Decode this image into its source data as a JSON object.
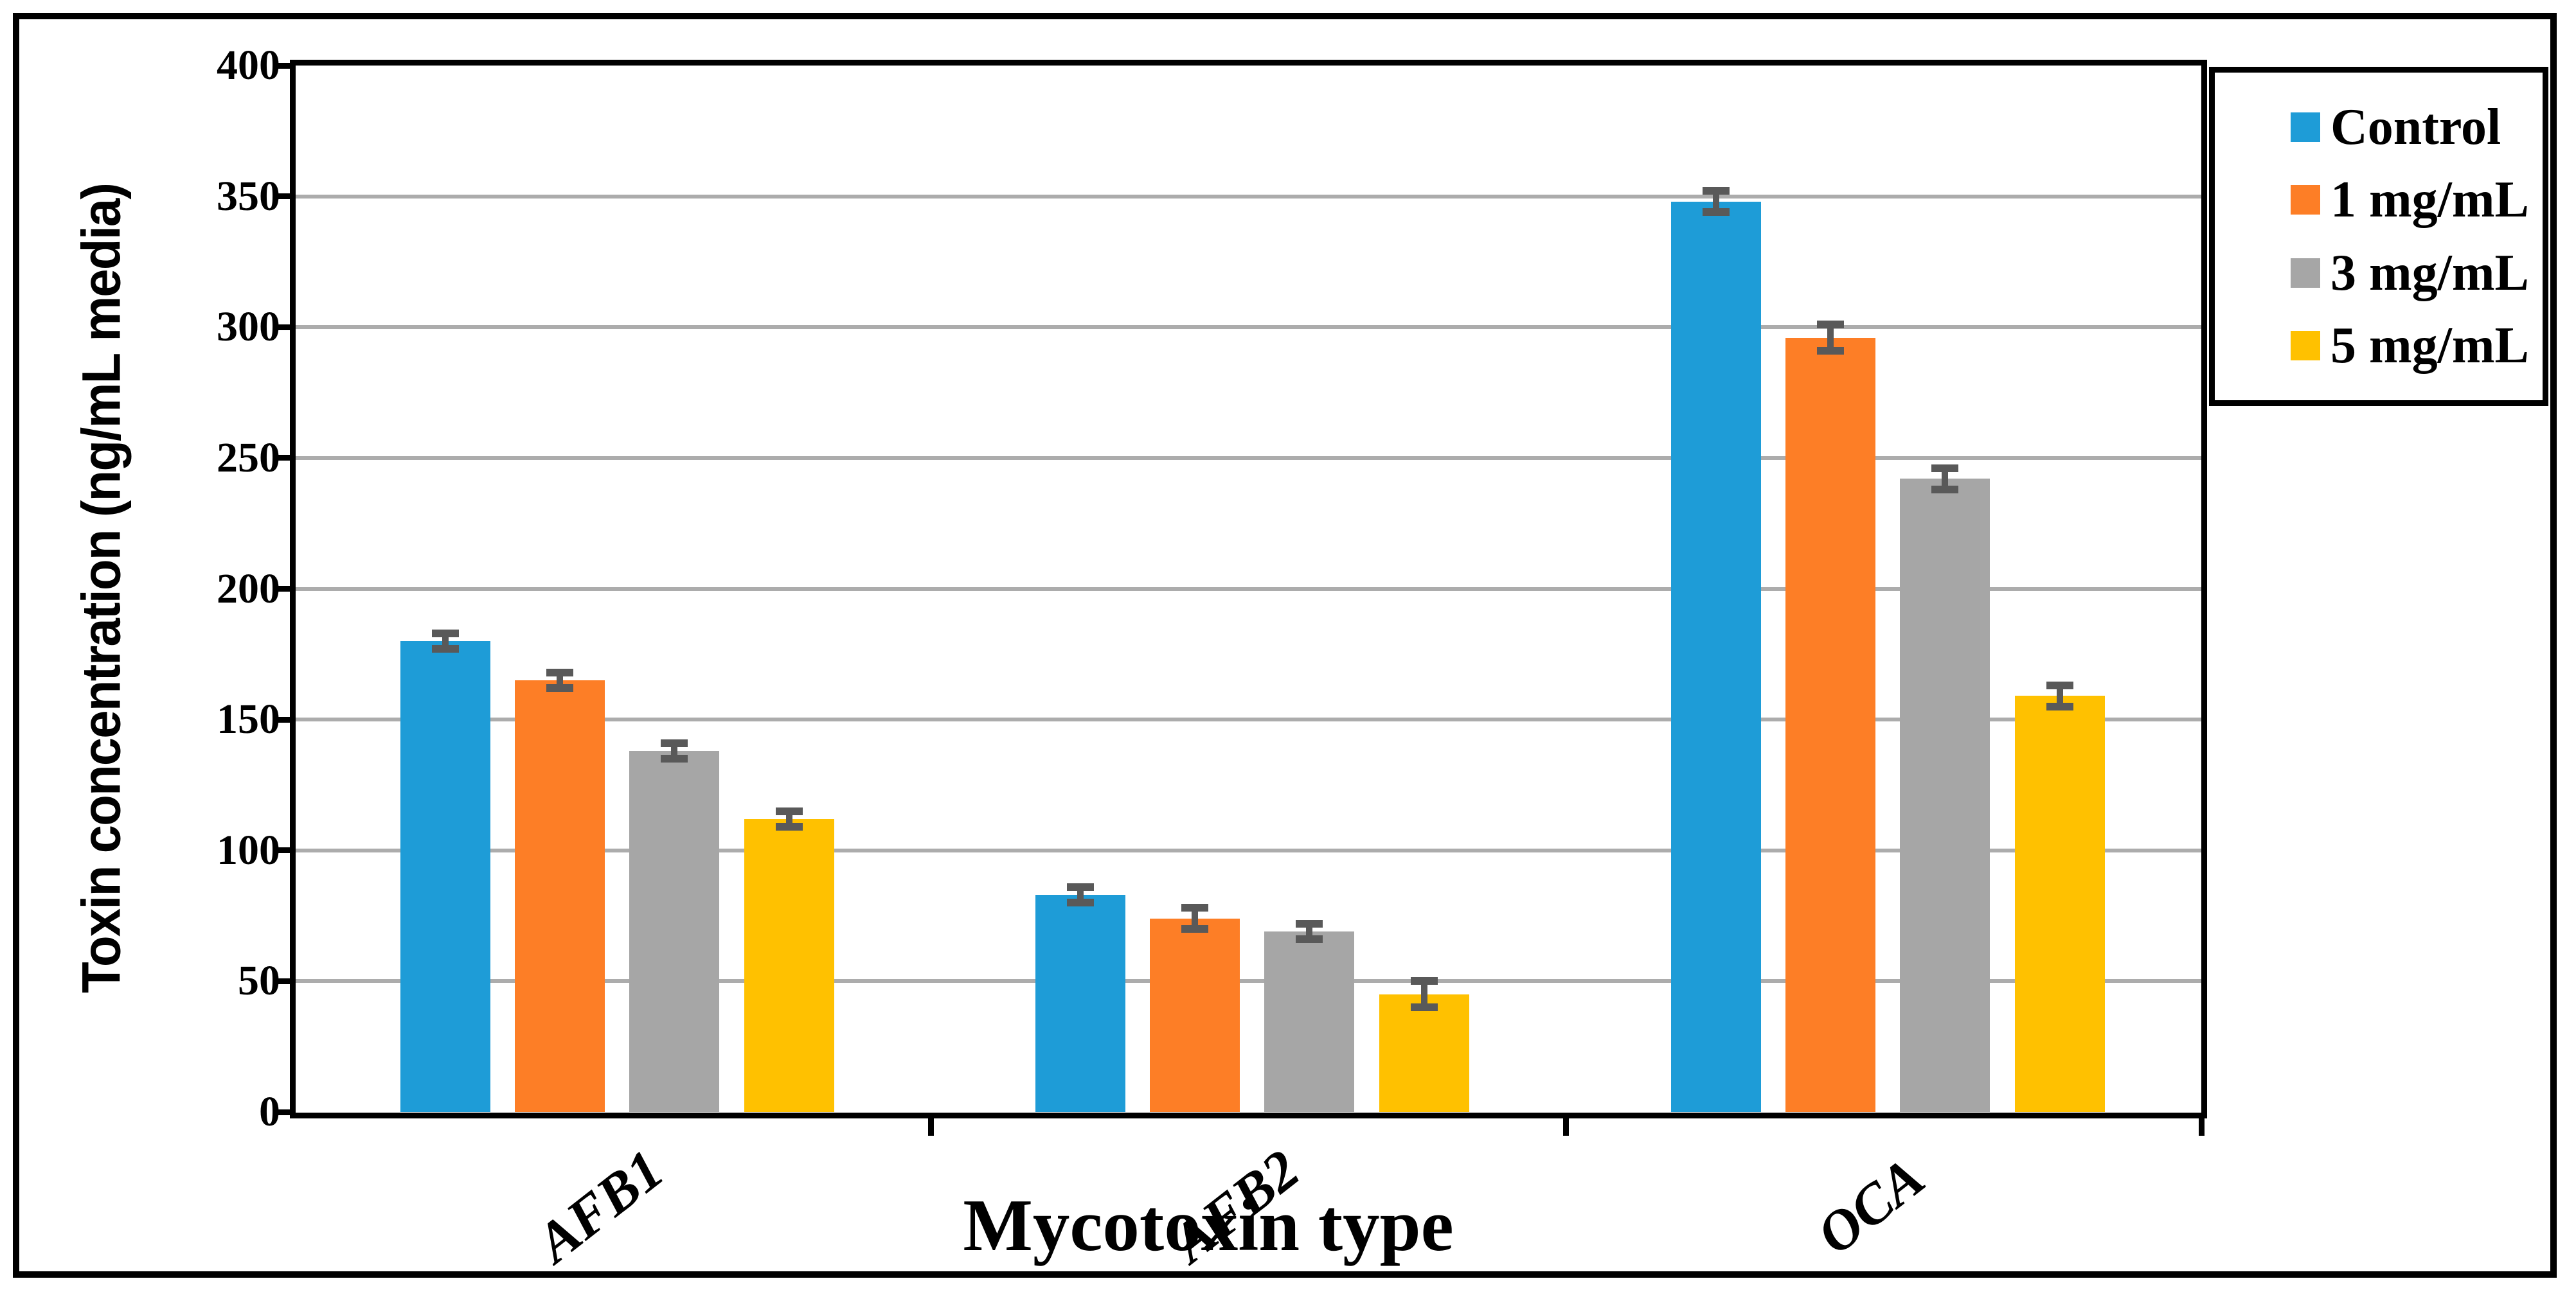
{
  "figure": {
    "background": "#FFFFFF",
    "outer_border_color": "#000000",
    "axis_line_color": "#000000",
    "gridline_color": "#ACACAC",
    "error_bar_color": "#595959"
  },
  "chart_data": {
    "type": "bar",
    "title": "",
    "xlabel": "Mycotoxin type",
    "ylabel": "Toxin concentration (ng/mL media)",
    "categories": [
      "AFB1",
      "AFB2",
      "OCA"
    ],
    "series": [
      {
        "name": "Control",
        "color": "#1E9CD7",
        "values": [
          180,
          83,
          348
        ],
        "errors": [
          3,
          3,
          4
        ]
      },
      {
        "name": "1 mg/mL",
        "color": "#FD7E26",
        "values": [
          165,
          74,
          296
        ],
        "errors": [
          3,
          4,
          5
        ]
      },
      {
        "name": "3 mg/mL",
        "color": "#A6A6A6",
        "values": [
          138,
          69,
          242
        ],
        "errors": [
          3,
          3,
          4
        ]
      },
      {
        "name": "5 mg/mL",
        "color": "#FFC100",
        "values": [
          112,
          45,
          159
        ],
        "errors": [
          3,
          5,
          4
        ]
      }
    ],
    "ylim": [
      0,
      400
    ],
    "yticks": [
      0,
      50,
      100,
      150,
      200,
      250,
      300,
      350,
      400
    ],
    "grid": "horizontal-only",
    "legend_position": "top-right",
    "legend_entries": [
      "Control",
      "1 mg/mL",
      "3 mg/mL",
      "5 mg/mL"
    ]
  }
}
